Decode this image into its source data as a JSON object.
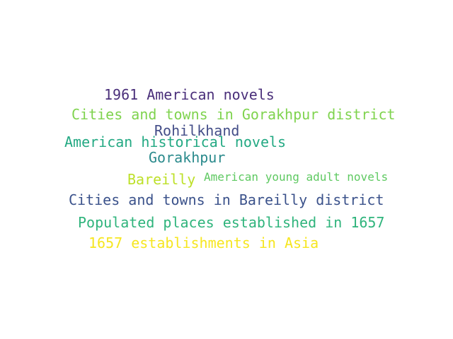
{
  "words": [
    {
      "text": "1961 American novels",
      "color": "#4a2f7a"
    },
    {
      "text": "Cities and towns in Gorakhpur district",
      "color": "#7fd34e"
    },
    {
      "text": "Rohilkhand",
      "color": "#434d88"
    },
    {
      "text": "American historical novels",
      "color": "#23a983"
    },
    {
      "text": "Gorakhpur",
      "color": "#2a8a8c"
    },
    {
      "text": "Bareilly",
      "color": "#bde028"
    },
    {
      "text": "American young adult novels",
      "color": "#5ec961"
    },
    {
      "text": "Cities and towns in Bareilly district",
      "color": "#3b528b"
    },
    {
      "text": "Populated places established in 1657",
      "color": "#2fb47c"
    },
    {
      "text": "1657 establishments in Asia",
      "color": "#f6e620"
    }
  ]
}
